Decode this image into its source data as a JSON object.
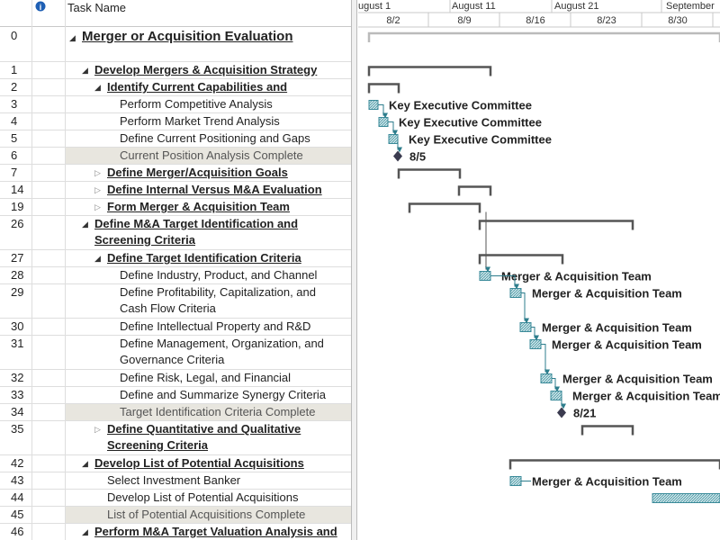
{
  "header": {
    "task_name": "Task Name"
  },
  "timescale": {
    "top": [
      "ugust 1",
      "August 11",
      "August 21",
      "September"
    ],
    "bottom": [
      "8/2",
      "8/9",
      "8/16",
      "8/23",
      "8/30"
    ]
  },
  "tasks": [
    {
      "id": 0,
      "name": "Merger or Acquisition Evaluation",
      "level": 0,
      "kind": "summary"
    },
    {
      "id": 1,
      "name": "Develop Mergers & Acquisition Strategy",
      "level": 1,
      "kind": "summary"
    },
    {
      "id": 2,
      "name": "Identify Current Capabilities and",
      "level": 2,
      "kind": "summary"
    },
    {
      "id": 3,
      "name": "Perform Competitive Analysis",
      "level": 3,
      "kind": "task",
      "resource": "Key Executive Committee"
    },
    {
      "id": 4,
      "name": "Perform Market Trend Analysis",
      "level": 3,
      "kind": "task",
      "resource": "Key Executive Committee"
    },
    {
      "id": 5,
      "name": "Define Current Positioning and Gaps",
      "level": 3,
      "kind": "task",
      "resource": "Key Executive Committee"
    },
    {
      "id": 6,
      "name": "Current Position Analysis Complete",
      "level": 3,
      "kind": "milestone",
      "resource": "8/5"
    },
    {
      "id": 7,
      "name": "Define Merger/Acquisition Goals",
      "level": 2,
      "kind": "summary",
      "collapsed": true
    },
    {
      "id": 14,
      "name": "Define Internal Versus M&A Evaluation",
      "level": 2,
      "kind": "summary",
      "collapsed": true
    },
    {
      "id": 19,
      "name": "Form Merger & Acquisition Team",
      "level": 2,
      "kind": "summary",
      "collapsed": true
    },
    {
      "id": 26,
      "name": "Define M&A Target Identification and\nScreening Criteria",
      "level": 1,
      "kind": "summary"
    },
    {
      "id": 27,
      "name": "Define Target Identification Criteria",
      "level": 2,
      "kind": "summary"
    },
    {
      "id": 28,
      "name": "Define Industry, Product, and Channel",
      "level": 3,
      "kind": "task",
      "resource": "Merger & Acquisition Team"
    },
    {
      "id": 29,
      "name": "Define Profitability, Capitalization, and\nCash Flow Criteria",
      "level": 3,
      "kind": "task",
      "resource": "Merger & Acquisition Team"
    },
    {
      "id": 30,
      "name": "Define Intellectual Property and R&D",
      "level": 3,
      "kind": "task",
      "resource": "Merger & Acquisition Team"
    },
    {
      "id": 31,
      "name": "Define Management, Organization, and\nGovernance Criteria",
      "level": 3,
      "kind": "task",
      "resource": "Merger & Acquisition Team"
    },
    {
      "id": 32,
      "name": "Define Risk, Legal, and Financial",
      "level": 3,
      "kind": "task",
      "resource": "Merger & Acquisition Team"
    },
    {
      "id": 33,
      "name": "Define and Summarize Synergy Criteria",
      "level": 3,
      "kind": "task",
      "resource": "Merger & Acquisition Team"
    },
    {
      "id": 34,
      "name": "Target Identification Criteria Complete",
      "level": 3,
      "kind": "milestone",
      "resource": "8/21"
    },
    {
      "id": 35,
      "name": "Define Quantitative and Qualitative\nScreening Criteria",
      "level": 2,
      "kind": "summary",
      "collapsed": true
    },
    {
      "id": 42,
      "name": "Develop List of Potential Acquisitions",
      "level": 1,
      "kind": "summary"
    },
    {
      "id": 43,
      "name": "Select Investment Banker",
      "level": 2,
      "kind": "task",
      "resource": "Merger & Acquisition Team"
    },
    {
      "id": 44,
      "name": "Develop List of Potential Acquisitions",
      "level": 2,
      "kind": "task"
    },
    {
      "id": 45,
      "name": "List of Potential Acquisitions Complete",
      "level": 2,
      "kind": "milestone"
    },
    {
      "id": 46,
      "name": "Perform M&A Target Valuation Analysis and",
      "level": 1,
      "kind": "summary"
    }
  ]
}
